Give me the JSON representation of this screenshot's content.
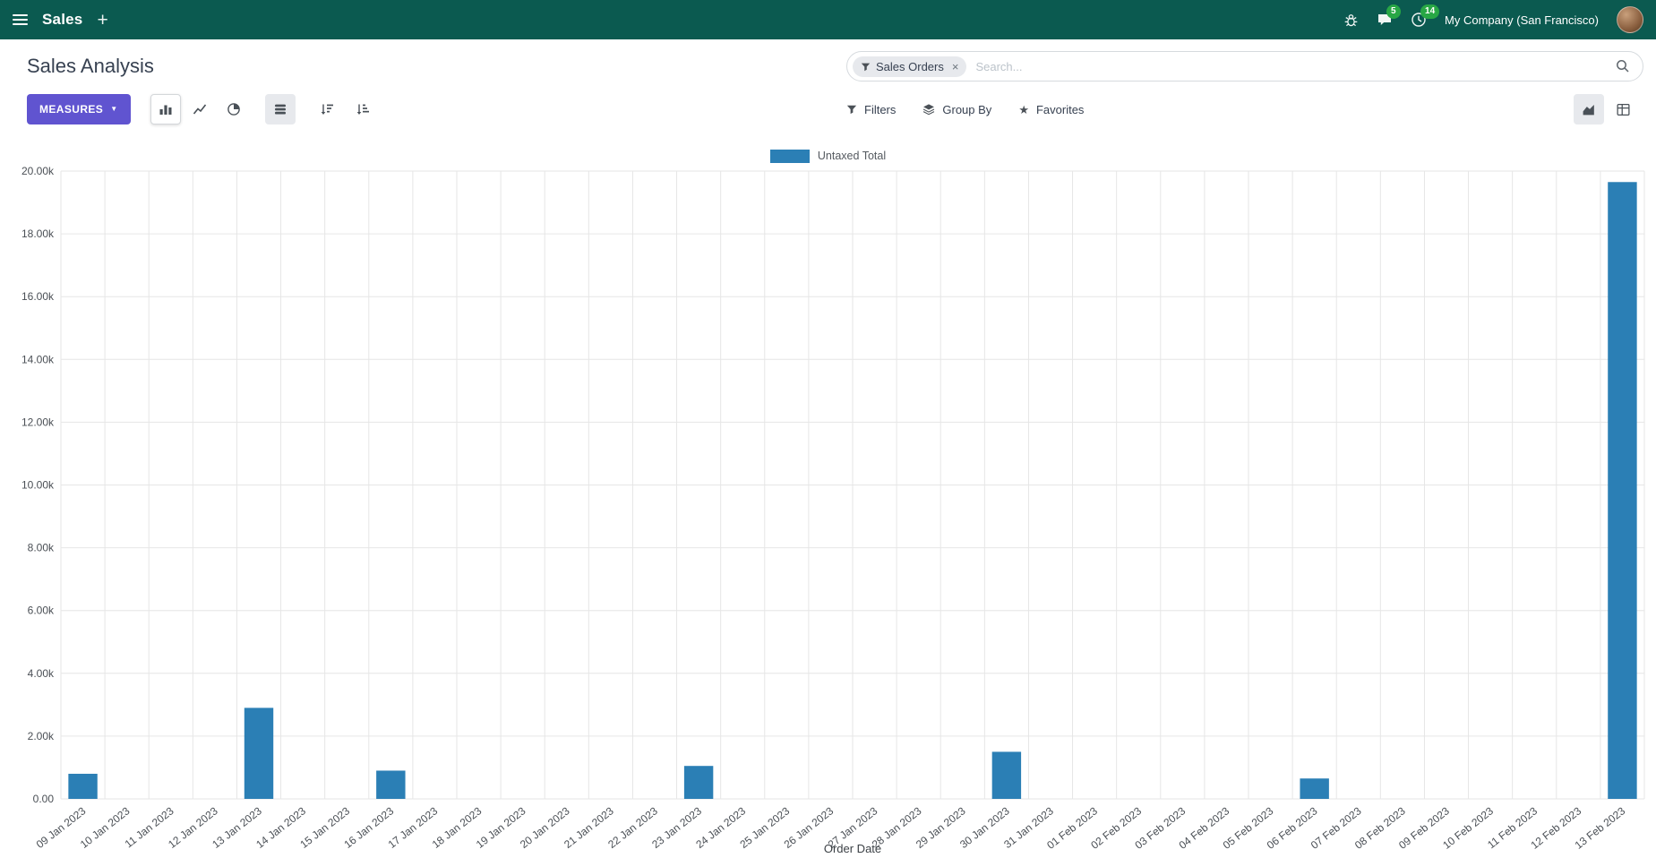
{
  "icons": {
    "plus": "+",
    "caret_down": "▼",
    "close": "×",
    "star": "★"
  },
  "colors": {
    "navbar_bg": "#0b5a50",
    "primary": "#6054d0",
    "bar": "#2b7fb5",
    "badge": "#28a745"
  },
  "navbar": {
    "app_name": "Sales",
    "messages_badge": "5",
    "activities_badge": "14",
    "company": "My Company (San Francisco)"
  },
  "control_panel": {
    "title": "Sales Analysis",
    "search": {
      "facet_label": "Sales Orders",
      "placeholder": "Search..."
    },
    "measures_label": "Measures",
    "filters_label": "Filters",
    "group_by_label": "Group By",
    "favorites_label": "Favorites"
  },
  "chart_data": {
    "type": "bar",
    "title": "",
    "categories": [
      "09 Jan 2023",
      "10 Jan 2023",
      "11 Jan 2023",
      "12 Jan 2023",
      "13 Jan 2023",
      "14 Jan 2023",
      "15 Jan 2023",
      "16 Jan 2023",
      "17 Jan 2023",
      "18 Jan 2023",
      "19 Jan 2023",
      "20 Jan 2023",
      "21 Jan 2023",
      "22 Jan 2023",
      "23 Jan 2023",
      "24 Jan 2023",
      "25 Jan 2023",
      "26 Jan 2023",
      "27 Jan 2023",
      "28 Jan 2023",
      "29 Jan 2023",
      "30 Jan 2023",
      "31 Jan 2023",
      "01 Feb 2023",
      "02 Feb 2023",
      "03 Feb 2023",
      "04 Feb 2023",
      "05 Feb 2023",
      "06 Feb 2023",
      "07 Feb 2023",
      "08 Feb 2023",
      "09 Feb 2023",
      "10 Feb 2023",
      "11 Feb 2023",
      "12 Feb 2023",
      "13 Feb 2023"
    ],
    "series": [
      {
        "name": "Untaxed Total",
        "color": "#2b7fb5",
        "values": [
          800,
          0,
          0,
          0,
          2900,
          0,
          0,
          900,
          0,
          0,
          0,
          0,
          0,
          0,
          1050,
          0,
          0,
          0,
          0,
          0,
          0,
          1500,
          0,
          0,
          0,
          0,
          0,
          0,
          650,
          0,
          0,
          0,
          0,
          0,
          0,
          19650
        ]
      }
    ],
    "xlabel": "Order Date",
    "ylabel": "",
    "ylim": [
      0,
      20000
    ],
    "ytick_step": 2000,
    "ytick_labels": [
      "0.00",
      "2.00k",
      "4.00k",
      "6.00k",
      "8.00k",
      "10.00k",
      "12.00k",
      "14.00k",
      "16.00k",
      "18.00k",
      "20.00k"
    ],
    "grid": true,
    "legend_position": "top"
  }
}
